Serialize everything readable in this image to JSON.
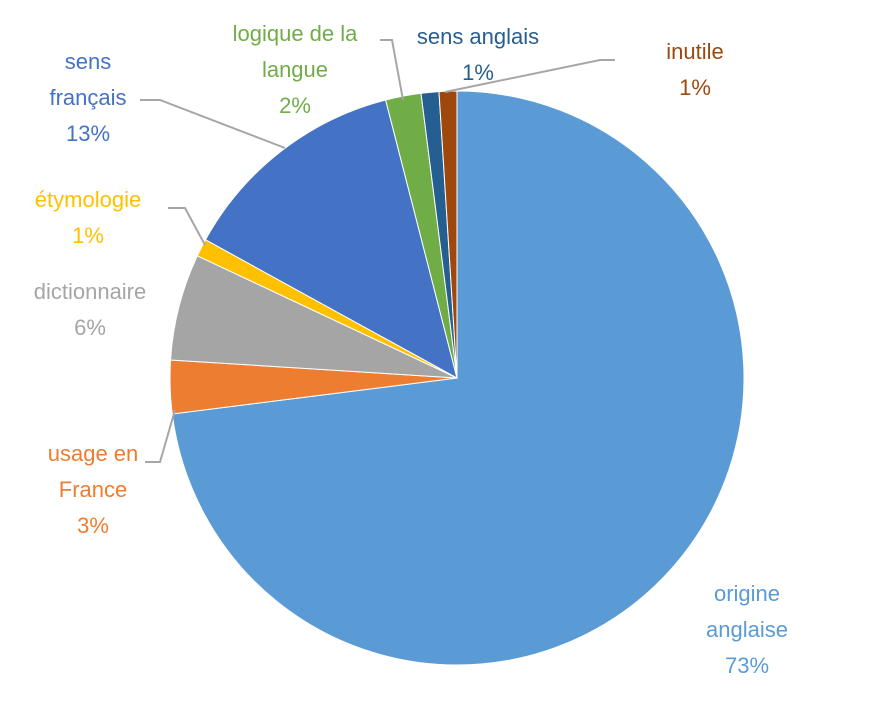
{
  "chart_data": {
    "type": "pie",
    "categories": [
      "origine anglaise",
      "usage en France",
      "dictionnaire",
      "étymologie",
      "sens français",
      "logique de la langue",
      "sens anglais",
      "inutile"
    ],
    "values": [
      73,
      3,
      6,
      1,
      13,
      2,
      1,
      1
    ],
    "value_labels": [
      "73%",
      "3%",
      "6%",
      "1%",
      "13%",
      "2%",
      "1%",
      "1%"
    ],
    "colors": [
      "#5b9bd5",
      "#ed7d31",
      "#a5a5a5",
      "#ffc000",
      "#4472c4",
      "#70ad47",
      "#255e91",
      "#9e480e"
    ]
  }
}
